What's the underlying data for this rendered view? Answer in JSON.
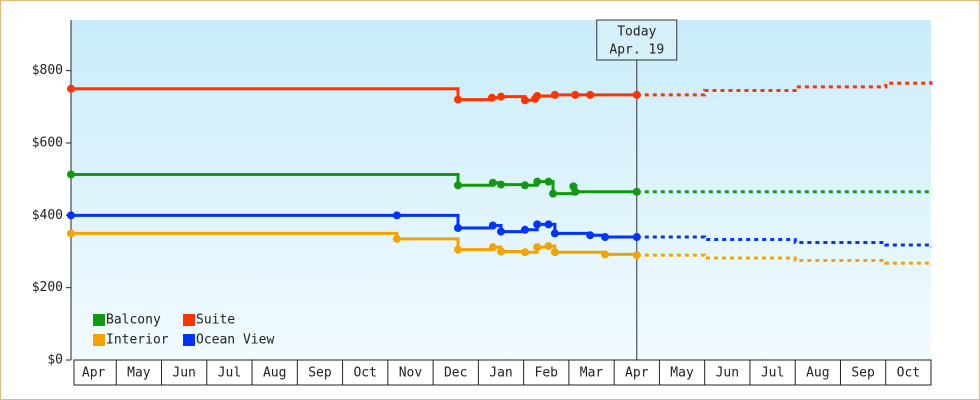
{
  "chart_data": {
    "type": "step",
    "categories": [
      "Apr",
      "May",
      "Jun",
      "Jul",
      "Aug",
      "Sep",
      "Oct",
      "Nov",
      "Dec",
      "Jan",
      "Feb",
      "Mar",
      "Apr",
      "May",
      "Jun",
      "Jul",
      "Aug",
      "Sep",
      "Oct"
    ],
    "xlim": [
      0,
      19
    ],
    "ylim": [
      0,
      940
    ],
    "yticks": [
      {
        "value": 0,
        "label": "$0"
      },
      {
        "value": 200,
        "label": "$200"
      },
      {
        "value": 400,
        "label": "$400"
      },
      {
        "value": 600,
        "label": "$600"
      },
      {
        "value": 800,
        "label": "$800"
      }
    ],
    "legend": "lower left",
    "annotation": {
      "x": 12.5,
      "text": [
        "Today",
        "Apr. 19"
      ]
    },
    "series": [
      {
        "name": "Balcony",
        "color": "#119911",
        "x": [
          0,
          8.55,
          9.32,
          9.5,
          10.03,
          10.3,
          10.55,
          10.65,
          11.1,
          11.14,
          12.5
        ],
        "values": [
          513,
          483,
          490,
          485,
          483,
          493,
          493,
          460,
          480,
          465,
          465
        ],
        "forecast": {
          "x": [
            12.5,
            14,
            16,
            18,
            19
          ],
          "values": [
            465,
            465,
            465,
            465,
            465
          ]
        }
      },
      {
        "name": "Suite",
        "color": "#ff3300",
        "x": [
          0,
          8.55,
          9.3,
          9.5,
          10.03,
          10.25,
          10.3,
          10.69,
          11.14,
          11.47,
          12.5
        ],
        "values": [
          750,
          720,
          725,
          728,
          718,
          722,
          730,
          733,
          733,
          733,
          733
        ],
        "forecast": {
          "x": [
            12.5,
            14,
            16,
            18,
            19
          ],
          "values": [
            733,
            745,
            755,
            765,
            778
          ]
        }
      },
      {
        "name": "Interior",
        "color": "#f4a300",
        "x": [
          0,
          7.2,
          8.55,
          9.32,
          9.5,
          10.03,
          10.3,
          10.55,
          10.69,
          11.8,
          12.5
        ],
        "values": [
          350,
          335,
          305,
          312,
          300,
          298,
          312,
          315,
          298,
          292,
          290
        ],
        "forecast": {
          "x": [
            12.5,
            14,
            16,
            18,
            19
          ],
          "values": [
            290,
            282,
            275,
            268,
            262
          ]
        }
      },
      {
        "name": "Ocean View",
        "color": "#0033ff",
        "x": [
          0,
          7.2,
          8.55,
          9.32,
          9.5,
          10.03,
          10.3,
          10.55,
          10.69,
          11.47,
          11.8,
          12.5
        ],
        "values": [
          400,
          400,
          365,
          372,
          355,
          360,
          375,
          375,
          350,
          345,
          340,
          340
        ],
        "forecast": {
          "x": [
            12.5,
            14,
            16,
            18,
            19
          ],
          "values": [
            340,
            333,
            325,
            318,
            312
          ]
        }
      }
    ]
  }
}
